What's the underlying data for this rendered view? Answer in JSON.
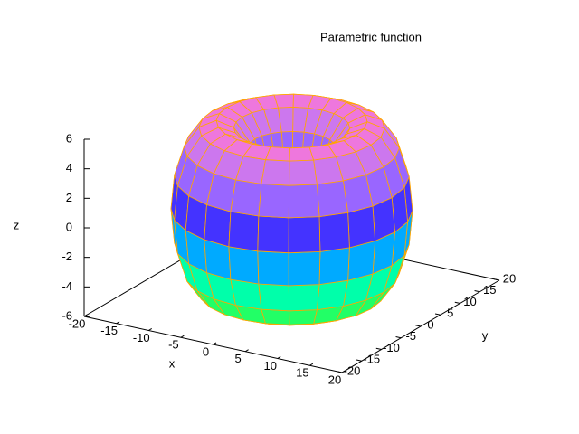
{
  "chart_data": {
    "type": "surface",
    "title": "Parametric function",
    "xlabel": "x",
    "ylabel": "y",
    "zlabel": "z",
    "xlim": [
      -20,
      20
    ],
    "ylim": [
      -20,
      20
    ],
    "zlim": [
      -6,
      6
    ],
    "xticks": [
      -20,
      -15,
      -10,
      -5,
      0,
      5,
      10,
      15,
      20
    ],
    "yticks": [
      -20,
      -15,
      -10,
      -5,
      0,
      5,
      10,
      15,
      20
    ],
    "zticks": [
      -6,
      -4,
      -2,
      0,
      2,
      4,
      6
    ],
    "colors": [
      "#33dd33",
      "#22ff66",
      "#00ffaa",
      "#00ffff",
      "#00aaff",
      "#0066ff",
      "#0000ff",
      "#4433ff",
      "#7755ff",
      "#9966ff",
      "#cc77ee",
      "#ee77dd"
    ],
    "mesh_color": "#ffa500",
    "axis_color": "#000000"
  }
}
